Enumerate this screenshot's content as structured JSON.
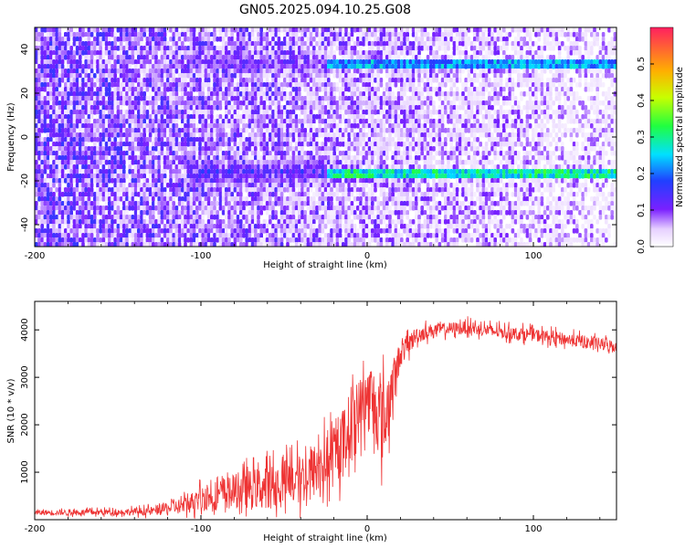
{
  "figure_title": "GN05.2025.094.10.25.G08",
  "chart_data": [
    {
      "type": "heatmap",
      "title": "GN05.2025.094.10.25.G08",
      "xlabel": "Height of straight line (km)",
      "ylabel": "Frequency (Hz)",
      "xlim": [
        -200,
        150
      ],
      "ylim": [
        -50,
        50
      ],
      "xticks": [
        -200,
        -100,
        0,
        100
      ],
      "yticks": [
        -40,
        -20,
        0,
        20,
        40
      ],
      "colorbar": {
        "label": "Normalized spectral amplitude",
        "range": [
          0,
          0.6
        ],
        "ticks": [
          0.0,
          0.1,
          0.2,
          0.3,
          0.4,
          0.5
        ]
      },
      "traces": [
        {
          "name": "upper_line",
          "frequency_hz": 35,
          "x_start": -25,
          "x_end": 150,
          "amplitude": 0.22,
          "diffuse_from": -110,
          "diffuse_to": -25,
          "diffuse_amplitude": 0.12
        },
        {
          "name": "lower_line",
          "frequency_hz": -15,
          "x_start": -25,
          "x_end": 150,
          "amplitude": 0.28,
          "diffuse_from": -110,
          "diffuse_to": -25,
          "diffuse_amplitude": 0.16
        }
      ]
    },
    {
      "type": "line",
      "xlabel": "Height of straight line (km)",
      "ylabel": "SNR (10 * v/v)",
      "xlim": [
        -200,
        150
      ],
      "ylim": [
        0,
        4600
      ],
      "xticks": [
        -200,
        -100,
        0,
        100
      ],
      "yticks": [
        1000,
        2000,
        3000,
        4000
      ],
      "color": "#ee3333",
      "series": [
        {
          "name": "SNR",
          "x": [
            -200,
            -150,
            -130,
            -110,
            -100,
            -80,
            -60,
            -40,
            -20,
            -10,
            0,
            5,
            10,
            20,
            30,
            40,
            60,
            80,
            100,
            120,
            150
          ],
          "mean": [
            150,
            160,
            180,
            300,
            450,
            600,
            700,
            850,
            1300,
            2000,
            2600,
            2400,
            2000,
            3500,
            3900,
            4000,
            4050,
            3950,
            3900,
            3800,
            3650
          ],
          "noise": [
            60,
            70,
            100,
            200,
            300,
            400,
            500,
            600,
            700,
            800,
            700,
            900,
            1000,
            300,
            200,
            150,
            150,
            150,
            150,
            150,
            150
          ]
        }
      ]
    }
  ]
}
